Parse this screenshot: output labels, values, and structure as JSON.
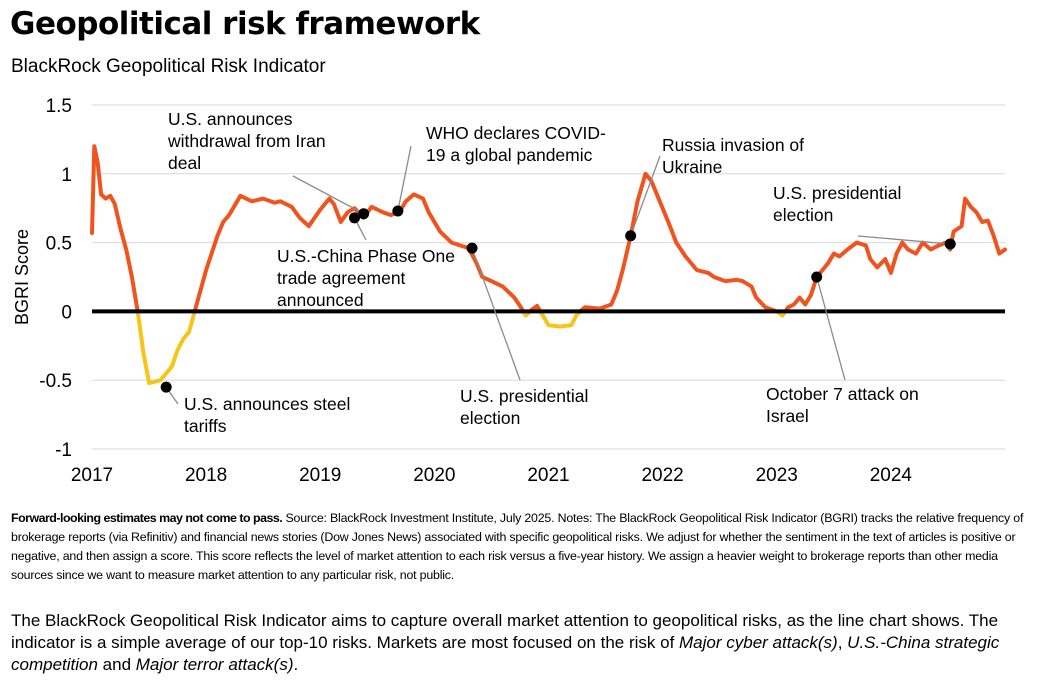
{
  "header": {
    "title": "Geopolitical risk framework",
    "subtitle": "BlackRock Geopolitical Risk Indicator"
  },
  "chart_data": {
    "type": "line",
    "title": "BlackRock Geopolitical Risk Indicator",
    "xlabel": "",
    "ylabel": "BGRI Score",
    "xlim": [
      2017.0,
      2025.0
    ],
    "ylim": [
      -1,
      1.5
    ],
    "yticks": [
      1.5,
      1,
      0.5,
      0,
      -0.5,
      -1
    ],
    "ytick_labels": [
      "1.5",
      "1",
      "0.5",
      "0",
      "-0.5",
      "-1"
    ],
    "xticks": [
      "2017",
      "2018",
      "2019",
      "2020",
      "2021",
      "2022",
      "2023",
      "2024"
    ],
    "grid": "horizontal",
    "colors": {
      "above_zero": "#f0531e",
      "below_zero": "#f5c518",
      "zero_line": "#000000",
      "grid": "#d9d9d9"
    },
    "series": [
      {
        "points": [
          [
            2017.0,
            0.57
          ],
          [
            2017.02,
            1.2
          ],
          [
            2017.05,
            1.08
          ],
          [
            2017.08,
            0.85
          ],
          [
            2017.12,
            0.82
          ],
          [
            2017.16,
            0.84
          ],
          [
            2017.2,
            0.78
          ],
          [
            2017.25,
            0.6
          ],
          [
            2017.3,
            0.45
          ],
          [
            2017.35,
            0.25
          ],
          [
            2017.4,
            0.0
          ],
          [
            2017.45,
            -0.3
          ],
          [
            2017.5,
            -0.52
          ],
          [
            2017.6,
            -0.5
          ],
          [
            2017.7,
            -0.4
          ],
          [
            2017.75,
            -0.28
          ],
          [
            2017.8,
            -0.2
          ],
          [
            2017.85,
            -0.15
          ],
          [
            2017.9,
            0.0
          ],
          [
            2018.0,
            0.3
          ],
          [
            2018.1,
            0.55
          ],
          [
            2018.15,
            0.65
          ],
          [
            2018.2,
            0.7
          ],
          [
            2018.3,
            0.84
          ],
          [
            2018.4,
            0.8
          ],
          [
            2018.5,
            0.82
          ],
          [
            2018.6,
            0.79
          ],
          [
            2018.65,
            0.8
          ],
          [
            2018.75,
            0.76
          ],
          [
            2018.82,
            0.68
          ],
          [
            2018.9,
            0.62
          ],
          [
            2019.0,
            0.74
          ],
          [
            2019.08,
            0.82
          ],
          [
            2019.12,
            0.78
          ],
          [
            2019.18,
            0.65
          ],
          [
            2019.24,
            0.72
          ],
          [
            2019.3,
            0.75
          ],
          [
            2019.38,
            0.68
          ],
          [
            2019.45,
            0.76
          ],
          [
            2019.55,
            0.72
          ],
          [
            2019.62,
            0.7
          ],
          [
            2019.7,
            0.73
          ],
          [
            2019.75,
            0.8
          ],
          [
            2019.82,
            0.85
          ],
          [
            2019.9,
            0.82
          ],
          [
            2019.95,
            0.72
          ],
          [
            2020.05,
            0.58
          ],
          [
            2020.15,
            0.5
          ],
          [
            2020.3,
            0.46
          ],
          [
            2020.37,
            0.35
          ],
          [
            2020.42,
            0.25
          ],
          [
            2020.5,
            0.22
          ],
          [
            2020.6,
            0.18
          ],
          [
            2020.7,
            0.1
          ],
          [
            2020.75,
            0.04
          ],
          [
            2020.8,
            -0.03
          ],
          [
            2020.85,
            0.01
          ],
          [
            2020.9,
            0.04
          ],
          [
            2020.95,
            -0.03
          ],
          [
            2021.0,
            -0.1
          ],
          [
            2021.1,
            -0.11
          ],
          [
            2021.2,
            -0.1
          ],
          [
            2021.25,
            -0.02
          ],
          [
            2021.32,
            0.03
          ],
          [
            2021.45,
            0.02
          ],
          [
            2021.55,
            0.05
          ],
          [
            2021.6,
            0.15
          ],
          [
            2021.65,
            0.3
          ],
          [
            2021.72,
            0.55
          ],
          [
            2021.78,
            0.8
          ],
          [
            2021.85,
            1.0
          ],
          [
            2021.9,
            0.95
          ],
          [
            2021.95,
            0.85
          ],
          [
            2022.0,
            0.75
          ],
          [
            2022.05,
            0.65
          ],
          [
            2022.12,
            0.5
          ],
          [
            2022.2,
            0.4
          ],
          [
            2022.3,
            0.3
          ],
          [
            2022.4,
            0.28
          ],
          [
            2022.45,
            0.25
          ],
          [
            2022.55,
            0.22
          ],
          [
            2022.65,
            0.23
          ],
          [
            2022.7,
            0.22
          ],
          [
            2022.78,
            0.18
          ],
          [
            2022.82,
            0.1
          ],
          [
            2022.9,
            0.03
          ],
          [
            2023.0,
            0.0
          ],
          [
            2023.05,
            -0.03
          ],
          [
            2023.1,
            0.03
          ],
          [
            2023.15,
            0.05
          ],
          [
            2023.2,
            0.1
          ],
          [
            2023.25,
            0.05
          ],
          [
            2023.3,
            0.12
          ],
          [
            2023.35,
            0.25
          ],
          [
            2023.4,
            0.3
          ],
          [
            2023.45,
            0.35
          ],
          [
            2023.5,
            0.42
          ],
          [
            2023.55,
            0.4
          ],
          [
            2023.62,
            0.45
          ],
          [
            2023.7,
            0.5
          ],
          [
            2023.78,
            0.48
          ],
          [
            2023.82,
            0.38
          ],
          [
            2023.88,
            0.32
          ],
          [
            2023.95,
            0.38
          ],
          [
            2024.0,
            0.28
          ],
          [
            2024.05,
            0.42
          ],
          [
            2024.1,
            0.5
          ],
          [
            2024.15,
            0.45
          ],
          [
            2024.22,
            0.42
          ],
          [
            2024.28,
            0.5
          ],
          [
            2024.35,
            0.45
          ],
          [
            2024.42,
            0.48
          ],
          [
            2024.48,
            0.5
          ],
          [
            2024.52,
            0.45
          ],
          [
            2024.55,
            0.58
          ],
          [
            2024.62,
            0.62
          ],
          [
            2024.65,
            0.82
          ],
          [
            2024.7,
            0.76
          ],
          [
            2024.75,
            0.72
          ],
          [
            2024.8,
            0.65
          ],
          [
            2024.85,
            0.66
          ],
          [
            2024.9,
            0.55
          ],
          [
            2024.95,
            0.42
          ],
          [
            2025.0,
            0.45
          ]
        ]
      }
    ],
    "annotations": [
      {
        "text": [
          "U.S. announces steel",
          "tariffs"
        ],
        "x": 2017.65,
        "y": -0.55
      },
      {
        "text": [
          "U.S. announces",
          "withdrawal from Iran",
          "deal"
        ],
        "x": 2019.38,
        "y": 0.71
      },
      {
        "text": [
          "U.S.-China Phase One",
          "trade agreement",
          "announced"
        ],
        "x": 2019.3,
        "y": 0.68
      },
      {
        "text": [
          "WHO declares COVID-",
          "19 a global pandemic"
        ],
        "x": 2019.68,
        "y": 0.73
      },
      {
        "text": [
          "U.S. presidential",
          "election"
        ],
        "x": 2020.33,
        "y": 0.46
      },
      {
        "text": [
          "Russia invasion of",
          "Ukraine"
        ],
        "x": 2021.72,
        "y": 0.55
      },
      {
        "text": [
          "October 7 attack on",
          "Israel"
        ],
        "x": 2023.35,
        "y": 0.25
      },
      {
        "text": [
          "U.S. presidential",
          "election"
        ],
        "x": 2024.52,
        "y": 0.49
      }
    ]
  },
  "footnote": {
    "bold": "Forward-looking estimates may not come to pass.",
    "text": " Source: BlackRock Investment Institute, July 2025. Notes: The BlackRock Geopolitical Risk Indicator (BGRI) tracks the relative frequency of brokerage reports (via Refinitiv) and financial news stories (Dow Jones News) associated with specific geopolitical risks. We adjust for whether the sentiment in the text of articles is positive or negative, and then assign a score. This score reflects the level of market attention to each risk versus a five-year history. We assign a heavier weight to brokerage reports than other media sources since we want to measure market attention to any particular risk, not public."
  },
  "summary": {
    "part1": "The BlackRock Geopolitical Risk Indicator aims to capture overall market attention to geopolitical risks, as the line chart shows. The indicator is a simple average of our top-10 risks. Markets are most focused on the risk of ",
    "em1": "Major cyber attack(s)",
    "part2": ", ",
    "em2": "U.S.-China strategic competition",
    "part3": " and ",
    "em3": "Major terror attack(s)",
    "part4": "."
  }
}
